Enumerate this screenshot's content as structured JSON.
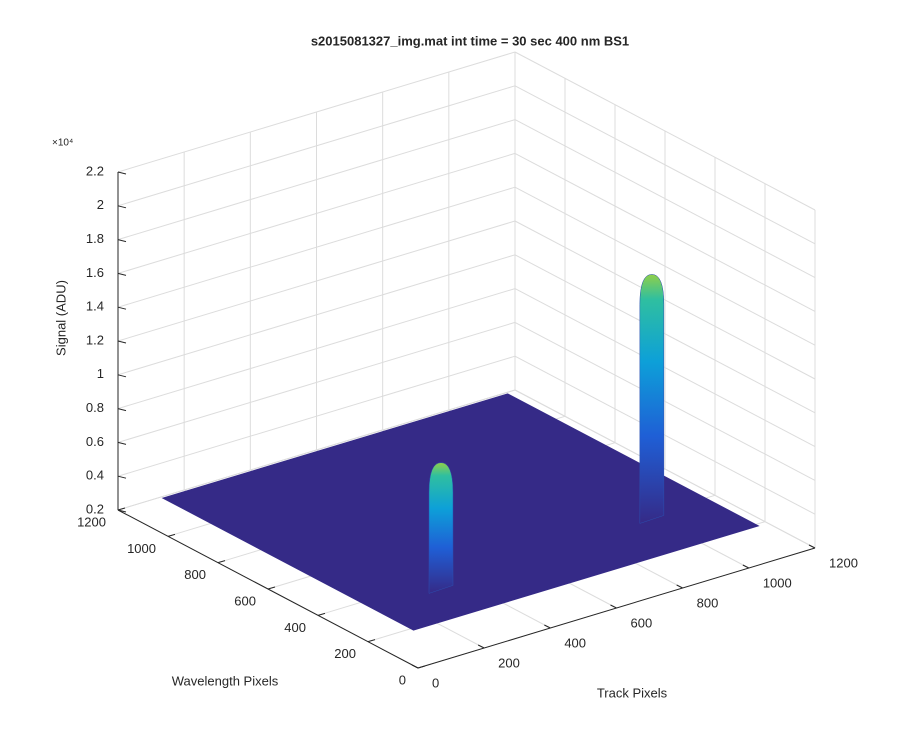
{
  "chart_data": {
    "type": "surface3d",
    "title": "s2015081327_img.mat int time = 30 sec  400 nm BS1",
    "xlabel": "Track Pixels",
    "ylabel": "Wavelength Pixels",
    "zlabel": "Signal (ADU)",
    "z_exponent": "×10⁴",
    "xlim": [
      0,
      1200
    ],
    "xticks": [
      0,
      200,
      400,
      600,
      800,
      1000,
      1200
    ],
    "ylim": [
      0,
      1200
    ],
    "yticks": [
      0,
      200,
      400,
      600,
      800,
      1000,
      1200
    ],
    "zlim": [
      2000,
      22000
    ],
    "zticks": [
      {
        "value": 2000,
        "label": "0.2"
      },
      {
        "value": 4000,
        "label": "0.4"
      },
      {
        "value": 6000,
        "label": "0.6"
      },
      {
        "value": 8000,
        "label": "0.8"
      },
      {
        "value": 10000,
        "label": "1"
      },
      {
        "value": 12000,
        "label": "1.2"
      },
      {
        "value": 14000,
        "label": "1.4"
      },
      {
        "value": 16000,
        "label": "1.6"
      },
      {
        "value": 18000,
        "label": "1.8"
      },
      {
        "value": 20000,
        "label": "2"
      },
      {
        "value": 22000,
        "label": "2.2"
      }
    ],
    "grid": true,
    "surface": {
      "x": [
        100,
        1140
      ],
      "y": [
        150,
        1150
      ],
      "z": 2500,
      "color": "#352a87"
    },
    "peaks": [
      {
        "x": 300,
        "y": 305,
        "z": 10000
      },
      {
        "x": 960,
        "y": 335,
        "z": 17000
      }
    ]
  }
}
